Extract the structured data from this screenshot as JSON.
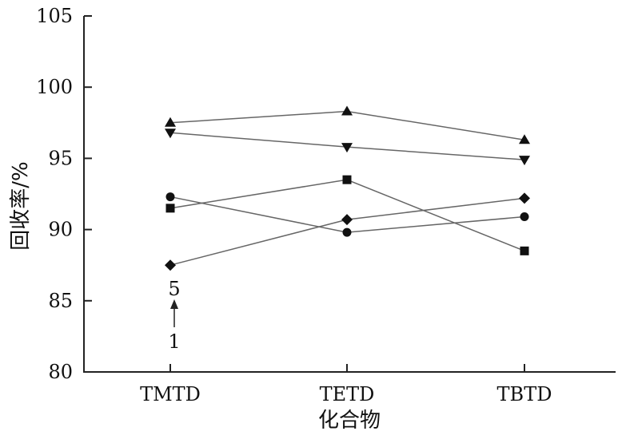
{
  "chart_data": {
    "type": "line",
    "title": "",
    "xlabel": "化合物",
    "ylabel": "回收率/%",
    "categories": [
      "TMTD",
      "TETD",
      "TBTD"
    ],
    "ylim": [
      80,
      105
    ],
    "yticks": [
      "80",
      "85",
      "90",
      "95",
      "100",
      "105"
    ],
    "grid": false,
    "series": [
      {
        "marker": "triangle-up",
        "values": [
          97.5,
          98.3,
          96.3
        ]
      },
      {
        "marker": "triangle-down",
        "values": [
          96.8,
          95.8,
          94.9
        ]
      },
      {
        "marker": "circle",
        "values": [
          92.3,
          89.8,
          90.9
        ]
      },
      {
        "marker": "square",
        "values": [
          91.5,
          93.5,
          88.5
        ]
      },
      {
        "marker": "diamond",
        "values": [
          87.5,
          90.7,
          92.2
        ]
      }
    ],
    "annotation": {
      "top": "5",
      "bottom": "1"
    }
  }
}
